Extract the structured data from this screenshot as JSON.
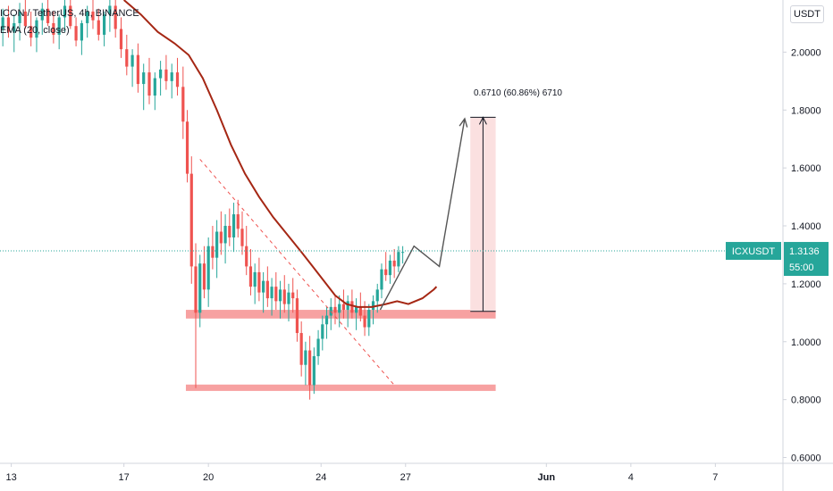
{
  "header": {
    "title": "ICON / TetherUS, 4h, BINANCE",
    "indicator": "EMA (20, close)",
    "currency": "USDT"
  },
  "colors": {
    "up": "#26a69a",
    "down": "#ef5350",
    "ema": "#a52714",
    "zone": "#f7a1a1",
    "target_fill": "#fbe0e0",
    "badge": "#26a69a",
    "line_gray": "#555555"
  },
  "chart_data": {
    "type": "candlestick",
    "x_ticks": [
      {
        "label": "13",
        "day": 13
      },
      {
        "label": "17",
        "day": 17
      },
      {
        "label": "20",
        "day": 20
      },
      {
        "label": "24",
        "day": 24
      },
      {
        "label": "27",
        "day": 27
      },
      {
        "label": "Jun",
        "day": 32
      },
      {
        "label": "4",
        "day": 35
      },
      {
        "label": "7",
        "day": 38
      }
    ],
    "y_ticks": [
      "2.0000",
      "1.8000",
      "1.6000",
      "1.4000",
      "1.2000",
      "1.0000",
      "0.8000",
      "0.6000"
    ],
    "y_range": [
      0.58,
      2.18
    ],
    "x_range": [
      12.6,
      40.4
    ],
    "ema": [
      [
        17.0,
        2.18
      ],
      [
        17.6,
        2.13
      ],
      [
        18.2,
        2.07
      ],
      [
        18.8,
        2.03
      ],
      [
        19.3,
        1.99
      ],
      [
        19.8,
        1.91
      ],
      [
        20.3,
        1.8
      ],
      [
        20.8,
        1.68
      ],
      [
        21.3,
        1.58
      ],
      [
        21.8,
        1.5
      ],
      [
        22.3,
        1.43
      ],
      [
        22.8,
        1.37
      ],
      [
        23.3,
        1.31
      ],
      [
        23.7,
        1.26
      ],
      [
        24.1,
        1.21
      ],
      [
        24.5,
        1.16
      ],
      [
        24.9,
        1.13
      ],
      [
        25.3,
        1.12
      ],
      [
        25.8,
        1.12
      ],
      [
        26.3,
        1.13
      ],
      [
        26.7,
        1.14
      ],
      [
        27.1,
        1.13
      ],
      [
        27.6,
        1.15
      ],
      [
        28.0,
        1.18
      ],
      [
        28.1,
        1.19
      ]
    ],
    "candles_ohlc_sample": "close path described by ohlc array",
    "candles": [
      [
        12.7,
        2.08,
        2.15,
        2.02,
        2.12
      ],
      [
        12.9,
        2.12,
        2.16,
        2.05,
        2.07
      ],
      [
        13.1,
        2.07,
        2.13,
        2.0,
        2.1
      ],
      [
        13.3,
        2.1,
        2.17,
        2.04,
        2.14
      ],
      [
        13.5,
        2.14,
        2.18,
        2.08,
        2.09
      ],
      [
        13.7,
        2.09,
        2.14,
        2.02,
        2.05
      ],
      [
        13.9,
        2.05,
        2.12,
        2.0,
        2.11
      ],
      [
        14.1,
        2.11,
        2.17,
        2.06,
        2.15
      ],
      [
        14.3,
        2.15,
        2.18,
        2.09,
        2.1
      ],
      [
        14.5,
        2.1,
        2.14,
        2.03,
        2.06
      ],
      [
        14.7,
        2.06,
        2.13,
        2.01,
        2.12
      ],
      [
        14.9,
        2.12,
        2.18,
        2.07,
        2.16
      ],
      [
        15.1,
        2.16,
        2.18,
        2.08,
        2.09
      ],
      [
        15.3,
        2.09,
        2.12,
        2.02,
        2.04
      ],
      [
        15.5,
        2.04,
        2.11,
        1.99,
        2.1
      ],
      [
        15.7,
        2.1,
        2.16,
        2.05,
        2.14
      ],
      [
        15.9,
        2.14,
        2.18,
        2.08,
        2.11
      ],
      [
        16.1,
        2.11,
        2.15,
        2.04,
        2.06
      ],
      [
        16.3,
        2.06,
        2.14,
        2.02,
        2.13
      ],
      [
        16.5,
        2.13,
        2.18,
        2.07,
        2.16
      ],
      [
        16.7,
        2.16,
        2.18,
        2.05,
        2.08
      ],
      [
        16.9,
        2.08,
        2.12,
        1.98,
        2.01
      ],
      [
        17.1,
        2.01,
        2.06,
        1.92,
        1.95
      ],
      [
        17.3,
        1.95,
        2.01,
        1.88,
        1.99
      ],
      [
        17.5,
        1.99,
        2.03,
        1.86,
        1.89
      ],
      [
        17.7,
        1.89,
        1.96,
        1.8,
        1.93
      ],
      [
        17.9,
        1.93,
        1.98,
        1.82,
        1.85
      ],
      [
        18.1,
        1.85,
        1.93,
        1.8,
        1.91
      ],
      [
        18.3,
        1.91,
        1.97,
        1.85,
        1.94
      ],
      [
        18.5,
        1.94,
        1.99,
        1.87,
        1.9
      ],
      [
        18.7,
        1.9,
        1.96,
        1.84,
        1.93
      ],
      [
        18.9,
        1.93,
        1.98,
        1.85,
        1.88
      ],
      [
        19.1,
        1.88,
        1.95,
        1.7,
        1.76
      ],
      [
        19.25,
        1.76,
        1.8,
        1.55,
        1.58
      ],
      [
        19.4,
        1.58,
        1.64,
        1.2,
        1.26
      ],
      [
        19.55,
        1.26,
        1.34,
        0.84,
        1.1
      ],
      [
        19.7,
        1.1,
        1.3,
        1.05,
        1.27
      ],
      [
        19.85,
        1.27,
        1.33,
        1.15,
        1.18
      ],
      [
        20.0,
        1.18,
        1.36,
        1.12,
        1.33
      ],
      [
        20.15,
        1.33,
        1.4,
        1.25,
        1.29
      ],
      [
        20.3,
        1.29,
        1.42,
        1.22,
        1.38
      ],
      [
        20.45,
        1.38,
        1.45,
        1.3,
        1.34
      ],
      [
        20.6,
        1.34,
        1.44,
        1.27,
        1.4
      ],
      [
        20.75,
        1.4,
        1.46,
        1.33,
        1.36
      ],
      [
        20.9,
        1.36,
        1.48,
        1.31,
        1.44
      ],
      [
        21.05,
        1.44,
        1.49,
        1.36,
        1.39
      ],
      [
        21.2,
        1.39,
        1.45,
        1.3,
        1.33
      ],
      [
        21.35,
        1.33,
        1.4,
        1.23,
        1.26
      ],
      [
        21.5,
        1.26,
        1.32,
        1.16,
        1.19
      ],
      [
        21.65,
        1.19,
        1.27,
        1.13,
        1.24
      ],
      [
        21.8,
        1.24,
        1.29,
        1.14,
        1.17
      ],
      [
        21.95,
        1.17,
        1.24,
        1.1,
        1.21
      ],
      [
        22.1,
        1.21,
        1.26,
        1.12,
        1.15
      ],
      [
        22.25,
        1.15,
        1.22,
        1.09,
        1.19
      ],
      [
        22.4,
        1.19,
        1.24,
        1.11,
        1.14
      ],
      [
        22.55,
        1.14,
        1.21,
        1.08,
        1.18
      ],
      [
        22.7,
        1.18,
        1.23,
        1.1,
        1.13
      ],
      [
        22.85,
        1.13,
        1.2,
        1.07,
        1.17
      ],
      [
        23.0,
        1.17,
        1.22,
        1.1,
        1.15
      ],
      [
        23.15,
        1.15,
        1.18,
        1.0,
        1.03
      ],
      [
        23.3,
        1.03,
        1.07,
        0.88,
        0.92
      ],
      [
        23.45,
        0.92,
        1.0,
        0.85,
        0.97
      ],
      [
        23.6,
        0.97,
        1.02,
        0.8,
        0.85
      ],
      [
        23.75,
        0.85,
        0.98,
        0.82,
        0.95
      ],
      [
        23.9,
        0.95,
        1.04,
        0.92,
        1.01
      ],
      [
        24.05,
        1.01,
        1.09,
        0.97,
        1.06
      ],
      [
        24.2,
        1.06,
        1.12,
        1.01,
        1.09
      ],
      [
        24.35,
        1.09,
        1.15,
        1.04,
        1.12
      ],
      [
        24.5,
        1.12,
        1.16,
        1.06,
        1.1
      ],
      [
        24.65,
        1.1,
        1.16,
        1.05,
        1.13
      ],
      [
        24.8,
        1.13,
        1.18,
        1.08,
        1.11
      ],
      [
        24.95,
        1.11,
        1.16,
        1.05,
        1.14
      ],
      [
        25.1,
        1.14,
        1.18,
        1.08,
        1.1
      ],
      [
        25.25,
        1.1,
        1.15,
        1.04,
        1.12
      ],
      [
        25.4,
        1.12,
        1.17,
        1.07,
        1.09
      ],
      [
        25.55,
        1.09,
        1.14,
        1.02,
        1.05
      ],
      [
        25.7,
        1.05,
        1.13,
        1.02,
        1.11
      ],
      [
        25.85,
        1.11,
        1.16,
        1.06,
        1.14
      ],
      [
        26.0,
        1.14,
        1.2,
        1.1,
        1.18
      ],
      [
        26.15,
        1.18,
        1.27,
        1.15,
        1.25
      ],
      [
        26.3,
        1.25,
        1.31,
        1.21,
        1.23
      ],
      [
        26.45,
        1.23,
        1.3,
        1.2,
        1.28
      ],
      [
        26.6,
        1.28,
        1.32,
        1.22,
        1.26
      ],
      [
        26.75,
        1.26,
        1.33,
        1.24,
        1.31
      ],
      [
        26.9,
        1.31,
        1.33,
        1.27,
        1.31
      ]
    ],
    "zones": [
      {
        "y_top": 1.11,
        "y_bottom": 1.08,
        "x_start": 19.2,
        "x_end": 30.2
      },
      {
        "y_top": 0.852,
        "y_bottom": 0.83,
        "x_start": 19.2,
        "x_end": 30.2
      }
    ],
    "downtrend_line": [
      [
        19.7,
        1.63
      ],
      [
        26.6,
        0.85
      ]
    ],
    "projection_path": [
      [
        26.1,
        1.11
      ],
      [
        27.3,
        1.33
      ],
      [
        28.2,
        1.26
      ],
      [
        29.1,
        1.77
      ]
    ],
    "target_box": {
      "x_start": 29.3,
      "x_end": 30.2,
      "y_top": 1.775,
      "y_bottom": 1.105
    },
    "target_label": "0.6710 (60.86%) 6710",
    "price_line": 1.3136,
    "badge": {
      "symbol": "ICXUSDT",
      "price": "1.3136",
      "countdown": "55:00"
    }
  }
}
